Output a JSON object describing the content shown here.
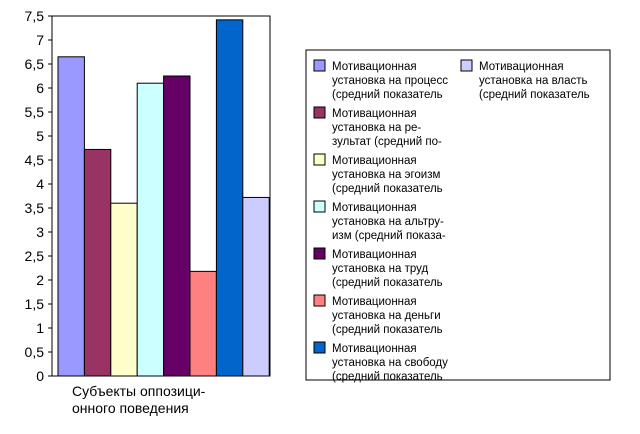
{
  "chart_data": {
    "type": "bar",
    "categories": [
      "Субъекты оппозици- онного поведения"
    ],
    "category_label_lines": [
      "Субъекты оппозици-",
      "онного поведения"
    ],
    "ylim": [
      0,
      7.5
    ],
    "y_ticks": [
      "0",
      "0,5",
      "1",
      "1,5",
      "2",
      "2,5",
      "3",
      "3,5",
      "4",
      "4,5",
      "5",
      "5,5",
      "6",
      "6,5",
      "7",
      "7,5"
    ],
    "grid": false,
    "legend_position": "right",
    "series": [
      {
        "name": "Мотивационная установка на процесс (средний показатель",
        "legend_lines": [
          "Мотивационная",
          "установка на процесс",
          "(средний показатель"
        ],
        "values": [
          6.65
        ],
        "color": "#9999ff"
      },
      {
        "name": "Мотивационная установка на ре- зультат (средний по-",
        "legend_lines": [
          "Мотивационная",
          "установка на ре-",
          "зультат (средний по-"
        ],
        "values": [
          4.72
        ],
        "color": "#993366"
      },
      {
        "name": "Мотивационная установка на эгоизм (средний показатель",
        "legend_lines": [
          "Мотивационная",
          "установка на эгоизм",
          "(средний показатель"
        ],
        "values": [
          3.6
        ],
        "color": "#ffffcc"
      },
      {
        "name": "Мотивационная установка на альтру- изм (средний показа-",
        "legend_lines": [
          "Мотивационная",
          "установка на альтру-",
          "изм (средний показа-"
        ],
        "values": [
          6.1
        ],
        "color": "#ccffff"
      },
      {
        "name": "Мотивационная установка на труд (средний показатель",
        "legend_lines": [
          "Мотивационная",
          "установка на труд",
          "(средний показатель"
        ],
        "values": [
          6.25
        ],
        "color": "#660066"
      },
      {
        "name": "Мотивационная установка на деньги (средний показатель",
        "legend_lines": [
          "Мотивационная",
          "установка на деньги",
          "(средний показатель"
        ],
        "values": [
          2.18
        ],
        "color": "#ff8080"
      },
      {
        "name": "Мотивационная установка на свободу (средний показатель",
        "legend_lines": [
          "Мотивационная",
          "установка на свободу",
          "(средний показатель"
        ],
        "values": [
          7.42
        ],
        "color": "#0066cc"
      },
      {
        "name": "Мотивационная установка на власть (средний показатель",
        "legend_lines": [
          "Мотивационная",
          "установка на власть",
          "(средний показатель"
        ],
        "values": [
          3.72
        ],
        "color": "#ccccff"
      }
    ]
  }
}
